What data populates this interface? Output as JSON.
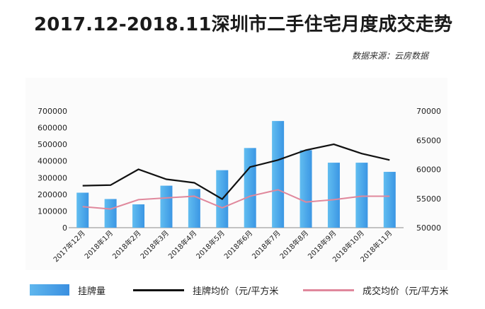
{
  "title": "2017.12-2018.11深圳市二手住宅月度成交走势",
  "source": "数据来源：云房数据",
  "colors": {
    "bar": "#3b96e4",
    "bar_light": "#61bdf0",
    "list_price": "#111111",
    "deal_price": "#e0889c"
  },
  "chart_data": {
    "type": "bar",
    "categories": [
      "2017年12月",
      "2018年1月",
      "2018年2月",
      "2018年3月",
      "2018年4月",
      "2018年5月",
      "2018年6月",
      "2018年7月",
      "2018年8月",
      "2018年9月",
      "2018年10月",
      "2018年11月"
    ],
    "left_axis": {
      "ylim": [
        0,
        700000
      ],
      "ticks": [
        "0",
        "100000",
        "200000",
        "300000",
        "400000",
        "500000",
        "600000",
        "700000"
      ]
    },
    "right_axis": {
      "ylim": [
        50000,
        70000
      ],
      "ticks": [
        "50000",
        "55000",
        "60000",
        "65000",
        "70000"
      ]
    },
    "series": [
      {
        "name": "挂牌量",
        "type": "bar",
        "axis": "left",
        "values": [
          210000,
          172000,
          140000,
          252000,
          232000,
          345000,
          478000,
          640000,
          465000,
          390000,
          390000,
          335000
        ]
      },
      {
        "name": "挂牌均价（元/平方米",
        "type": "line",
        "axis": "right",
        "values": [
          57200,
          57300,
          60000,
          58300,
          57700,
          54900,
          60400,
          61600,
          63300,
          64300,
          62700,
          61600
        ]
      },
      {
        "name": "成交均价（元/平方米",
        "type": "line",
        "axis": "right",
        "values": [
          53600,
          53200,
          54800,
          55100,
          55400,
          53400,
          55400,
          56500,
          54400,
          54800,
          55400,
          55400
        ]
      }
    ],
    "legend": [
      "挂牌量",
      "挂牌均价（元/平方米",
      "成交均价（元/平方米"
    ],
    "legend_position": "bottom"
  }
}
